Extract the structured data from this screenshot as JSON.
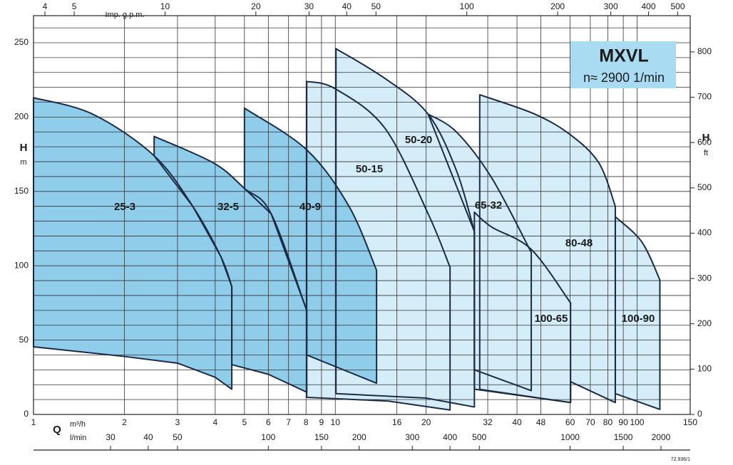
{
  "chart_data": {
    "type": "region",
    "title": "MXVL",
    "subtitle": "n≈ 2900 1/min",
    "y_label": "H",
    "y_unit": "m",
    "y2_label": "H",
    "y2_unit": "ft",
    "x_label": "Q",
    "x_unit": "m³/h",
    "x2_unit": "Imp. g.p.m.",
    "x3_unit": "l/min",
    "code": "72.936/1",
    "log_x": true,
    "grid": true,
    "xlim": [
      1,
      150
    ],
    "xticks": [
      1,
      2,
      3,
      4,
      5,
      6,
      7,
      8,
      9,
      10,
      16,
      20,
      32,
      40,
      48,
      60,
      70,
      80,
      90,
      100,
      150
    ],
    "x2lim": [
      3.666,
      549.9
    ],
    "x2ticks": [
      4,
      5,
      10,
      20,
      30,
      40,
      50,
      100,
      200,
      300,
      400,
      500
    ],
    "x3lim": [
      16.67,
      2500
    ],
    "x3ticks": [
      30,
      40,
      50,
      100,
      150,
      200,
      300,
      400,
      500,
      1000,
      1500,
      2000
    ],
    "ylim": [
      0,
      268.2
    ],
    "yticks": [
      0,
      50,
      100,
      150,
      200,
      250
    ],
    "y_minor_ticks": [
      10,
      20,
      30,
      40,
      60,
      70,
      80,
      90,
      110,
      120,
      130,
      140,
      160,
      170,
      180,
      190,
      210,
      220,
      230,
      240,
      260
    ],
    "y2lim": [
      0,
      880
    ],
    "y2ticks": [
      0,
      100,
      200,
      300,
      400,
      500,
      600,
      700,
      800
    ],
    "series": [
      {
        "name": "25-3",
        "color": "#8fcdeb",
        "x": [
          1,
          1.57,
          2.51,
          3.37,
          4.18,
          4.54
        ],
        "values": [
          213,
          202,
          174,
          140,
          106,
          86
        ],
        "x_low": [
          1,
          2,
          3,
          4,
          4.54
        ],
        "values_low": [
          45.5,
          39,
          34.5,
          25,
          17
        ]
      },
      {
        "name": "32-5",
        "color": "#8fcdeb",
        "x": [
          2.51,
          3.96,
          5,
          6.13,
          8.04
        ],
        "values": [
          187,
          169,
          152,
          135,
          70
        ],
        "x_low": [
          2.51,
          3.37,
          4.18,
          4.54,
          4.54,
          6,
          8.04
        ],
        "values_low": [
          174,
          140,
          106,
          86,
          33.5,
          27,
          15
        ]
      },
      {
        "name": "40-9",
        "color": "#8fcdeb",
        "x": [
          5,
          8.04,
          11.1,
          13.7
        ],
        "values": [
          206,
          178,
          140,
          97
        ],
        "x_low": [
          5,
          6.13,
          8.04,
          8.04,
          13.7
        ],
        "values_low": [
          152,
          135,
          70,
          40,
          21
        ]
      },
      {
        "name": "50-15",
        "color": "#d4edf9",
        "x": [
          8.04,
          10,
          14.6,
          20.3,
          24
        ],
        "values": [
          224,
          219,
          192.5,
          135,
          99
        ],
        "x_low": [
          8.04,
          15,
          24
        ],
        "values_low": [
          11.5,
          9,
          3
        ]
      },
      {
        "name": "50-20",
        "color": "#d4edf9",
        "x": [
          10.05,
          14.6,
          20.3,
          25.2,
          28.9
        ],
        "values": [
          246,
          226,
          202,
          164,
          123
        ],
        "x_low": [
          10.05,
          20,
          28.9
        ],
        "values_low": [
          14,
          11,
          5
        ]
      },
      {
        "name": "65-32",
        "color": "#d4edf9",
        "x": [
          20.3,
          25.2,
          33,
          44.6
        ],
        "values": [
          202,
          190,
          159,
          109
        ],
        "x_low": [
          28.9,
          28.9,
          44.6
        ],
        "values_low": [
          123,
          30,
          16
        ]
      },
      {
        "name": "80-48",
        "color": "#d4edf9",
        "x": [
          28.9,
          33,
          44.6,
          60.2
        ],
        "values": [
          136,
          126,
          111,
          75
        ],
        "x_low": [
          28.9,
          60.2
        ],
        "values_low": [
          17,
          8
        ]
      },
      {
        "name": "100-65",
        "color": "#d4edf9",
        "x": [
          30.1,
          45.8,
          60.2,
          74.8,
          84.7
        ],
        "values": [
          215,
          202,
          188,
          169,
          140
        ],
        "x_low": [
          30.1,
          60.2,
          60.2,
          84.7
        ],
        "values_low": [
          16.9,
          8,
          22,
          8
        ]
      },
      {
        "name": "100-90",
        "color": "#d4edf9",
        "x": [
          84.7,
          103.7,
          119
        ],
        "values": [
          133,
          116,
          90.5
        ],
        "x_low": [
          84.7,
          119
        ],
        "values_low": [
          14,
          3.4
        ]
      }
    ]
  }
}
